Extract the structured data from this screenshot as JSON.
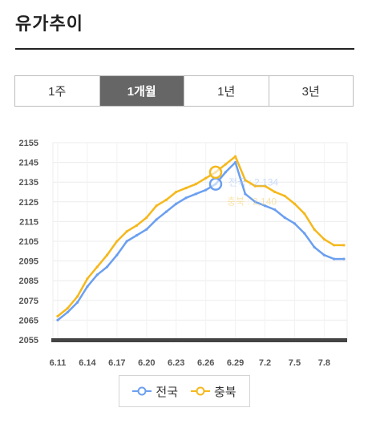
{
  "title": "유가추이",
  "tabs": [
    {
      "label": "1주",
      "active": false
    },
    {
      "label": "1개월",
      "active": true
    },
    {
      "label": "1년",
      "active": false
    },
    {
      "label": "3년",
      "active": false
    }
  ],
  "colors": {
    "national": "#6b9ff0",
    "chungbuk": "#f5b81c",
    "axis": "#444444",
    "tab_active": "#666666"
  },
  "chart_data": {
    "type": "line",
    "title": "",
    "xlabel": "",
    "ylabel": "",
    "ylim": [
      2055,
      2155
    ],
    "yticks": [
      2055,
      2065,
      2075,
      2085,
      2095,
      2105,
      2115,
      2125,
      2135,
      2145,
      2155
    ],
    "xtick_labels": [
      "6.11",
      "6.14",
      "6.17",
      "6.20",
      "6.23",
      "6.26",
      "6.29",
      "7.2",
      "7.5",
      "7.8"
    ],
    "grid": true,
    "legend": "bottom",
    "x": [
      "6.11",
      "6.12",
      "6.13",
      "6.14",
      "6.15",
      "6.16",
      "6.17",
      "6.18",
      "6.19",
      "6.20",
      "6.21",
      "6.22",
      "6.23",
      "6.24",
      "6.25",
      "6.26",
      "6.27",
      "6.28",
      "6.29",
      "6.30",
      "7.1",
      "7.2",
      "7.3",
      "7.4",
      "7.5",
      "7.6",
      "7.7",
      "7.8",
      "7.9",
      "7.10"
    ],
    "series": [
      {
        "name": "전국",
        "color": "#6b9ff0",
        "values": [
          2065,
          2069,
          2074,
          2082,
          2088,
          2092,
          2098,
          2105,
          2108,
          2111,
          2116,
          2120,
          2124,
          2127,
          2129,
          2131,
          2134,
          2140,
          2145,
          2129,
          2125,
          2123,
          2121,
          2117,
          2114,
          2109,
          2102,
          2098,
          2096,
          2096
        ]
      },
      {
        "name": "충북",
        "color": "#f5b81c",
        "values": [
          2067,
          2071,
          2077,
          2086,
          2092,
          2098,
          2105,
          2110,
          2113,
          2117,
          2123,
          2126,
          2130,
          2132,
          2134,
          2137,
          2140,
          2144,
          2148,
          2136,
          2133,
          2133,
          2130,
          2128,
          2124,
          2119,
          2111,
          2106,
          2103,
          2103
        ]
      }
    ],
    "tooltip": {
      "index": 16,
      "lines": [
        "전국 : 2,134",
        "충북 : 2,140"
      ]
    }
  },
  "legend": [
    {
      "label": "전국",
      "series": 0
    },
    {
      "label": "충북",
      "series": 1
    }
  ]
}
